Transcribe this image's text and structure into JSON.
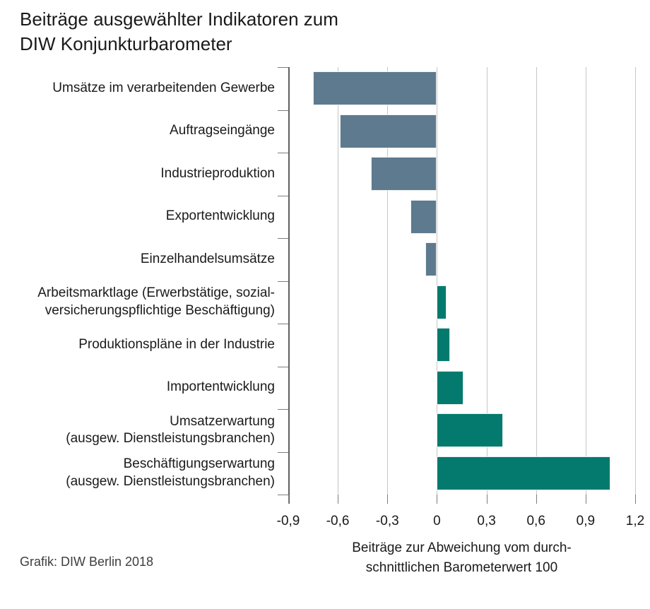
{
  "header": {
    "title_lines": [
      "Beiträge ausgewählter Indikatoren zum",
      "DIW Konjunkturbarometer"
    ]
  },
  "footer": {
    "source": "Grafik: DIW Berlin 2018"
  },
  "colors": {
    "negative_bar": "#5d7a8e",
    "positive_bar": "#047a6e",
    "gridline": "#c6c6c6",
    "axis_line": "#5f5f5f",
    "tick": "#7d7d7d",
    "text": "#1a1a1a"
  },
  "chart_data": {
    "type": "bar",
    "orientation": "horizontal",
    "title": "Beiträge ausgewählter Indikatoren zum DIW Konjunkturbarometer",
    "categories": [
      [
        "Umsätze im verarbeitenden Gewerbe"
      ],
      [
        "Auftragseingänge"
      ],
      [
        "Industrieproduktion"
      ],
      [
        "Exportentwicklung"
      ],
      [
        "Einzelhandelsumsätze"
      ],
      [
        "Arbeitsmarktlage (Erwerbstätige, sozial-",
        "versicherungspflichtige Beschäftigung)"
      ],
      [
        "Produktionspläne in der Industrie"
      ],
      [
        "Importentwicklung"
      ],
      [
        "Umsatzerwartung",
        "(ausgew. Dienstleistungsbranchen)"
      ],
      [
        "Beschäftigungserwartung",
        "(ausgew. Dienstleistungsbranchen)"
      ]
    ],
    "values": [
      -0.75,
      -0.59,
      -0.4,
      -0.16,
      -0.07,
      0.06,
      0.08,
      0.16,
      0.4,
      1.05
    ],
    "xlim": [
      -0.9,
      1.2
    ],
    "xticks": [
      -0.9,
      -0.6,
      -0.3,
      0,
      0.3,
      0.6,
      0.9,
      1.2
    ],
    "xtick_labels": [
      "-0,9",
      "-0,6",
      "-0,3",
      "0",
      "0,3",
      "0,6",
      "0,9",
      "1,2"
    ],
    "xlabel_lines": [
      "Beiträge zur Abweichung vom durch-",
      "schnittlichen Barometerwert 100"
    ],
    "grid": true,
    "legend": "none",
    "source": "Grafik: DIW Berlin 2018"
  }
}
